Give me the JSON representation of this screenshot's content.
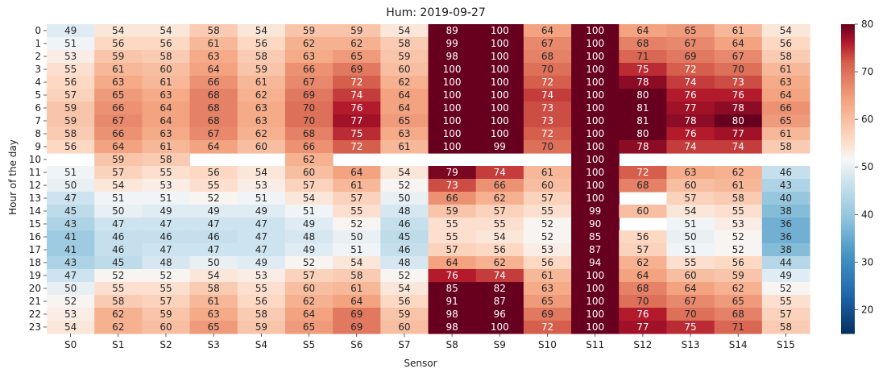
{
  "chart_data": {
    "type": "heatmap",
    "title": "Hum: 2019-09-27",
    "xlabel": "Sensor",
    "ylabel": "Hour of the day",
    "x": [
      "S0",
      "S1",
      "S2",
      "S3",
      "S4",
      "S5",
      "S6",
      "S7",
      "S8",
      "S9",
      "S10",
      "S11",
      "S12",
      "S13",
      "S14",
      "S15"
    ],
    "y": [
      "0",
      "1",
      "2",
      "3",
      "4",
      "5",
      "6",
      "7",
      "8",
      "9",
      "10",
      "11",
      "12",
      "13",
      "14",
      "15",
      "16",
      "17",
      "18",
      "19",
      "20",
      "21",
      "22",
      "23"
    ],
    "values": [
      [
        49,
        54,
        54,
        58,
        54,
        59,
        59,
        54,
        89,
        100,
        64,
        100,
        64,
        65,
        61,
        54
      ],
      [
        51,
        56,
        56,
        61,
        56,
        62,
        62,
        58,
        99,
        100,
        67,
        100,
        68,
        67,
        64,
        56
      ],
      [
        53,
        59,
        58,
        63,
        58,
        63,
        65,
        59,
        98,
        100,
        68,
        100,
        71,
        69,
        67,
        58
      ],
      [
        55,
        61,
        60,
        64,
        59,
        66,
        69,
        60,
        100,
        100,
        70,
        100,
        75,
        72,
        70,
        61
      ],
      [
        56,
        63,
        61,
        66,
        61,
        67,
        72,
        62,
        100,
        100,
        72,
        100,
        78,
        74,
        73,
        63
      ],
      [
        57,
        65,
        63,
        68,
        62,
        69,
        74,
        64,
        100,
        100,
        74,
        100,
        80,
        76,
        76,
        64
      ],
      [
        59,
        66,
        64,
        68,
        63,
        70,
        76,
        64,
        100,
        100,
        73,
        100,
        81,
        77,
        78,
        66
      ],
      [
        59,
        67,
        64,
        68,
        63,
        70,
        77,
        65,
        100,
        100,
        73,
        100,
        81,
        78,
        80,
        65
      ],
      [
        58,
        66,
        63,
        67,
        62,
        68,
        75,
        63,
        100,
        100,
        72,
        100,
        80,
        76,
        77,
        61
      ],
      [
        56,
        64,
        61,
        64,
        60,
        66,
        72,
        61,
        100,
        99,
        70,
        100,
        78,
        74,
        74,
        58
      ],
      [
        null,
        59,
        58,
        null,
        null,
        62,
        null,
        null,
        null,
        null,
        null,
        100,
        null,
        null,
        null,
        null
      ],
      [
        51,
        57,
        55,
        56,
        54,
        60,
        64,
        54,
        79,
        74,
        61,
        100,
        72,
        63,
        62,
        46
      ],
      [
        50,
        54,
        53,
        55,
        53,
        57,
        61,
        52,
        73,
        66,
        60,
        100,
        68,
        60,
        61,
        43
      ],
      [
        47,
        51,
        51,
        52,
        51,
        54,
        57,
        50,
        66,
        62,
        57,
        100,
        null,
        57,
        58,
        40
      ],
      [
        45,
        50,
        49,
        49,
        49,
        51,
        55,
        48,
        59,
        57,
        55,
        99,
        60,
        54,
        55,
        38
      ],
      [
        43,
        47,
        47,
        47,
        47,
        49,
        52,
        46,
        55,
        55,
        52,
        90,
        null,
        51,
        53,
        36
      ],
      [
        41,
        46,
        46,
        46,
        47,
        48,
        50,
        45,
        55,
        54,
        52,
        85,
        56,
        50,
        52,
        36
      ],
      [
        41,
        46,
        47,
        47,
        47,
        49,
        51,
        46,
        57,
        56,
        53,
        87,
        57,
        51,
        52,
        38
      ],
      [
        43,
        45,
        48,
        50,
        49,
        52,
        54,
        48,
        64,
        62,
        56,
        94,
        62,
        55,
        56,
        44
      ],
      [
        47,
        52,
        52,
        54,
        53,
        57,
        58,
        52,
        76,
        74,
        61,
        100,
        64,
        60,
        59,
        49
      ],
      [
        50,
        55,
        55,
        58,
        55,
        60,
        61,
        54,
        85,
        82,
        63,
        100,
        68,
        64,
        62,
        52
      ],
      [
        52,
        58,
        57,
        61,
        56,
        62,
        64,
        56,
        91,
        87,
        65,
        100,
        70,
        67,
        65,
        55
      ],
      [
        53,
        62,
        59,
        63,
        58,
        64,
        69,
        59,
        98,
        96,
        69,
        100,
        76,
        70,
        68,
        57
      ],
      [
        54,
        62,
        60,
        65,
        59,
        65,
        69,
        60,
        98,
        100,
        72,
        100,
        77,
        75,
        71,
        58
      ]
    ],
    "vmin": 15,
    "vmax": 80,
    "colormap": "RdBu_r",
    "colorbar_ticks": [
      20,
      30,
      40,
      50,
      60,
      70,
      80
    ],
    "annotated": true,
    "grid": false
  }
}
